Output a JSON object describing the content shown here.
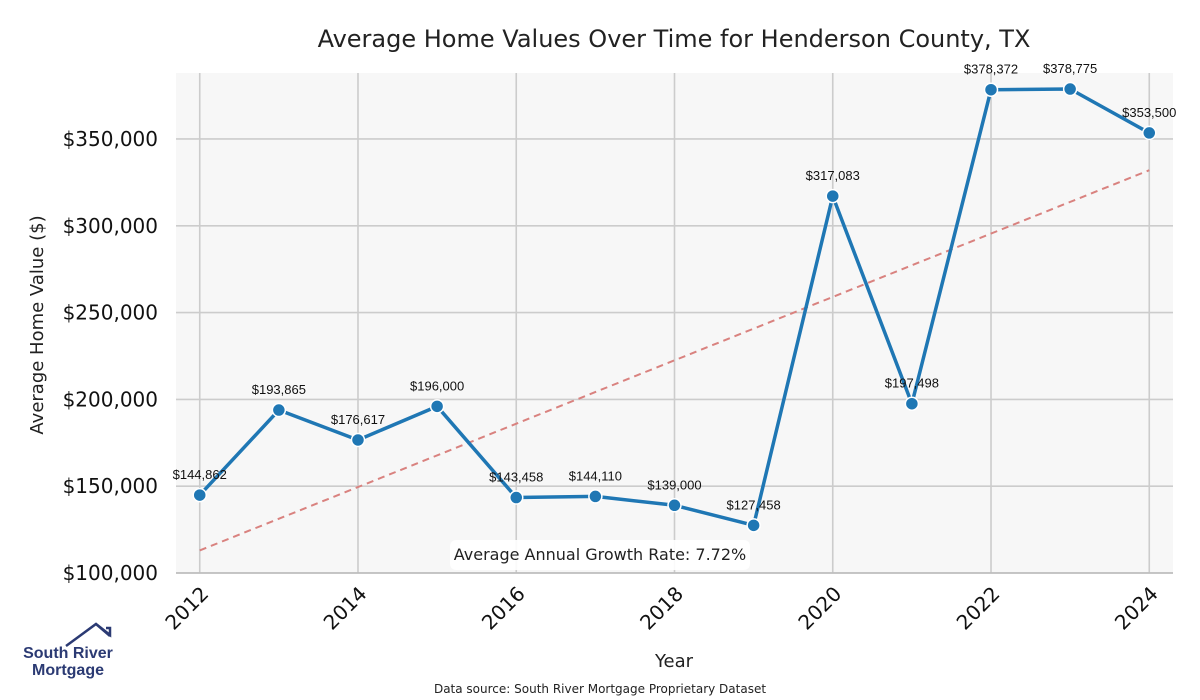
{
  "chart_data": {
    "type": "line",
    "title": "Average Home Values Over Time for Henderson County, TX",
    "xlabel": "Year",
    "ylabel": "Average Home Value ($)",
    "x": [
      2012,
      2013,
      2014,
      2015,
      2016,
      2017,
      2018,
      2019,
      2020,
      2021,
      2022,
      2023,
      2024
    ],
    "series": [
      {
        "values": [
          144862,
          193865,
          176617,
          196000,
          143458,
          144110,
          139000,
          127458,
          317083,
          197498,
          378372,
          378775,
          353500
        ],
        "labels": [
          "$144,862",
          "$193,865",
          "$176,617",
          "$196,000",
          "$143,458",
          "$144,110",
          "$139,000",
          "$127,458",
          "$317,083",
          "$197,498",
          "$378,372",
          "$378,775",
          "$353,500"
        ],
        "color": "#1f77b4"
      }
    ],
    "trendline": {
      "start": [
        2012,
        113000
      ],
      "end": [
        2024,
        332000
      ],
      "color": "#d9827f",
      "style": "dashed"
    },
    "xticks": [
      2012,
      2014,
      2016,
      2018,
      2020,
      2022,
      2024
    ],
    "xtick_labels": [
      "2012",
      "2014",
      "2016",
      "2018",
      "2020",
      "2022",
      "2024"
    ],
    "yticks": [
      100000,
      150000,
      200000,
      250000,
      300000,
      350000
    ],
    "ytick_labels": [
      "$100,000",
      "$150,000",
      "$200,000",
      "$250,000",
      "$300,000",
      "$350,000"
    ],
    "xlim": [
      2011.7,
      2024.3
    ],
    "ylim": [
      100000,
      388000
    ],
    "grid": true,
    "annotation": "Average Annual Growth Rate: 7.72%",
    "source": "Data source: South River Mortgage Proprietary Dataset"
  },
  "logo": {
    "line1": "South River",
    "line2": "Mortgage"
  },
  "colors": {
    "plot_bg": "#f7f7f7",
    "grid": "#cccccc",
    "line": "#1f77b4",
    "trend": "#d9827f",
    "logo_navy": "#2b3a73"
  }
}
